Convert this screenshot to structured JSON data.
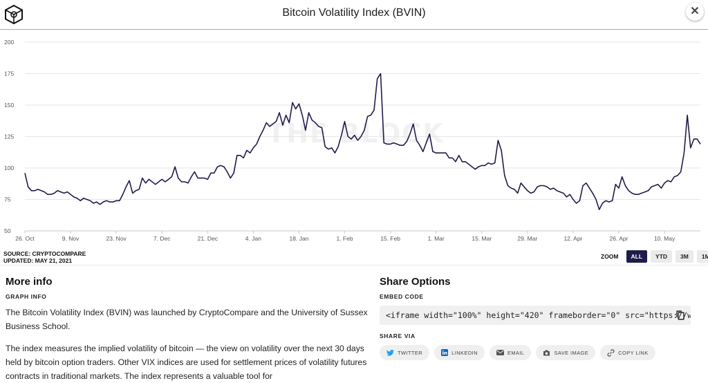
{
  "header": {
    "title": "Bitcoin Volatility Index (BVIN)"
  },
  "source": {
    "line1": "SOURCE: CRYPTOCOMPARE",
    "line2": "UPDATED: MAY 21, 2021"
  },
  "zoom": {
    "label": "ZOOM",
    "buttons": [
      "ALL",
      "YTD",
      "3M",
      "1M"
    ],
    "active": "ALL"
  },
  "more_info": {
    "title": "More info",
    "subtitle": "GRAPH INFO",
    "p1": "The Bitcoin Volatility Index (BVIN) was launched by CryptoCompare and the University of Sussex Business School.",
    "p2": "The index measures the implied volatility of bitcoin — the view on volatility over the next 30 days held by bitcoin option traders. Other VIX indices are used for settlement prices of volatility futures contracts in traditional markets. The index represents a valuable tool for"
  },
  "share": {
    "title": "Share Options",
    "embed_label": "EMBED CODE",
    "embed_code": "<iframe width=\"100%\" height=\"420\" frameborder=\"0\" src=\"https://www.theblockcrypto.com/data/embed",
    "share_via_label": "SHARE VIA",
    "buttons": {
      "twitter": "TWITTER",
      "linkedin": "LINKEDIN",
      "email": "EMAIL",
      "save": "SAVE IMAGE",
      "copy": "COPY LINK"
    }
  },
  "colors": {
    "line": "#1f1b4b",
    "accent": "#c98ee0",
    "active_zoom": "#1f1b4b"
  },
  "chart_data": {
    "type": "line",
    "title": "Bitcoin Volatility Index (BVIN)",
    "xlabel": "",
    "ylabel": "",
    "watermark": "THE BLOCK",
    "ylim": [
      50,
      200
    ],
    "yticks": [
      50,
      75,
      100,
      125,
      150,
      175,
      200
    ],
    "xlim": [
      "2020-10-26",
      "2021-05-21"
    ],
    "xticks": [
      {
        "date": "2020-10-26",
        "label": "26. Oct"
      },
      {
        "date": "2020-11-09",
        "label": "9. Nov"
      },
      {
        "date": "2020-11-23",
        "label": "23. Nov"
      },
      {
        "date": "2020-12-07",
        "label": "7. Dec"
      },
      {
        "date": "2020-12-21",
        "label": "21. Dec"
      },
      {
        "date": "2021-01-04",
        "label": "4. Jan"
      },
      {
        "date": "2021-01-18",
        "label": "18. Jan"
      },
      {
        "date": "2021-02-01",
        "label": "1. Feb"
      },
      {
        "date": "2021-02-15",
        "label": "15. Feb"
      },
      {
        "date": "2021-03-01",
        "label": "1. Mar"
      },
      {
        "date": "2021-03-15",
        "label": "15. Mar"
      },
      {
        "date": "2021-03-29",
        "label": "29. Mar"
      },
      {
        "date": "2021-04-12",
        "label": "12. Apr"
      },
      {
        "date": "2021-04-26",
        "label": "26. Apr"
      },
      {
        "date": "2021-05-10",
        "label": "10. May"
      }
    ],
    "grid": true,
    "series": [
      {
        "values": [
          [
            "2020-10-26",
            96
          ],
          [
            "2020-10-27",
            85
          ],
          [
            "2020-10-28",
            82
          ],
          [
            "2020-10-29",
            82
          ],
          [
            "2020-10-30",
            83
          ],
          [
            "2020-10-31",
            82
          ],
          [
            "2020-11-01",
            81
          ],
          [
            "2020-11-02",
            79
          ],
          [
            "2020-11-03",
            79
          ],
          [
            "2020-11-04",
            80
          ],
          [
            "2020-11-05",
            82
          ],
          [
            "2020-11-06",
            81
          ],
          [
            "2020-11-07",
            80
          ],
          [
            "2020-11-08",
            81
          ],
          [
            "2020-11-09",
            79
          ],
          [
            "2020-11-10",
            77
          ],
          [
            "2020-11-11",
            76
          ],
          [
            "2020-11-12",
            74
          ],
          [
            "2020-11-13",
            76
          ],
          [
            "2020-11-14",
            75
          ],
          [
            "2020-11-15",
            74
          ],
          [
            "2020-11-16",
            72
          ],
          [
            "2020-11-17",
            73
          ],
          [
            "2020-11-18",
            71
          ],
          [
            "2020-11-19",
            73
          ],
          [
            "2020-11-20",
            74
          ],
          [
            "2020-11-21",
            73
          ],
          [
            "2020-11-22",
            73
          ],
          [
            "2020-11-23",
            74
          ],
          [
            "2020-11-24",
            74
          ],
          [
            "2020-11-25",
            79
          ],
          [
            "2020-11-26",
            85
          ],
          [
            "2020-11-27",
            90
          ],
          [
            "2020-11-28",
            80
          ],
          [
            "2020-11-29",
            82
          ],
          [
            "2020-11-30",
            83
          ],
          [
            "2020-12-01",
            92
          ],
          [
            "2020-12-02",
            88
          ],
          [
            "2020-12-03",
            91
          ],
          [
            "2020-12-04",
            89
          ],
          [
            "2020-12-05",
            87
          ],
          [
            "2020-12-06",
            89
          ],
          [
            "2020-12-07",
            91
          ],
          [
            "2020-12-08",
            89
          ],
          [
            "2020-12-09",
            91
          ],
          [
            "2020-12-10",
            93
          ],
          [
            "2020-12-11",
            101
          ],
          [
            "2020-12-12",
            92
          ],
          [
            "2020-12-13",
            89
          ],
          [
            "2020-12-14",
            89
          ],
          [
            "2020-12-15",
            88
          ],
          [
            "2020-12-16",
            93
          ],
          [
            "2020-12-17",
            97
          ],
          [
            "2020-12-18",
            92
          ],
          [
            "2020-12-19",
            92
          ],
          [
            "2020-12-20",
            92
          ],
          [
            "2020-12-21",
            91
          ],
          [
            "2020-12-22",
            96
          ],
          [
            "2020-12-23",
            96
          ],
          [
            "2020-12-24",
            101
          ],
          [
            "2020-12-25",
            102
          ],
          [
            "2020-12-26",
            101
          ],
          [
            "2020-12-27",
            97
          ],
          [
            "2020-12-28",
            92
          ],
          [
            "2020-12-29",
            96
          ],
          [
            "2020-12-30",
            110
          ],
          [
            "2020-12-31",
            110
          ],
          [
            "2021-01-01",
            108
          ],
          [
            "2021-01-02",
            114
          ],
          [
            "2021-01-03",
            112
          ],
          [
            "2021-01-04",
            116
          ],
          [
            "2021-01-05",
            119
          ],
          [
            "2021-01-06",
            125
          ],
          [
            "2021-01-07",
            130
          ],
          [
            "2021-01-08",
            136
          ],
          [
            "2021-01-09",
            133
          ],
          [
            "2021-01-10",
            135
          ],
          [
            "2021-01-11",
            137
          ],
          [
            "2021-01-12",
            144
          ],
          [
            "2021-01-13",
            134
          ],
          [
            "2021-01-14",
            142
          ],
          [
            "2021-01-15",
            136
          ],
          [
            "2021-01-16",
            152
          ],
          [
            "2021-01-17",
            147
          ],
          [
            "2021-01-18",
            151
          ],
          [
            "2021-01-19",
            142
          ],
          [
            "2021-01-20",
            130
          ],
          [
            "2021-01-21",
            144
          ],
          [
            "2021-01-22",
            138
          ],
          [
            "2021-01-23",
            136
          ],
          [
            "2021-01-24",
            133
          ],
          [
            "2021-01-25",
            132
          ],
          [
            "2021-01-26",
            117
          ],
          [
            "2021-01-27",
            115
          ],
          [
            "2021-01-28",
            116
          ],
          [
            "2021-01-29",
            112
          ],
          [
            "2021-01-30",
            117
          ],
          [
            "2021-01-31",
            126
          ],
          [
            "2021-02-01",
            137
          ],
          [
            "2021-02-02",
            125
          ],
          [
            "2021-02-03",
            123
          ],
          [
            "2021-02-04",
            126
          ],
          [
            "2021-02-05",
            122
          ],
          [
            "2021-02-06",
            125
          ],
          [
            "2021-02-07",
            130
          ],
          [
            "2021-02-08",
            141
          ],
          [
            "2021-02-09",
            142
          ],
          [
            "2021-02-10",
            146
          ],
          [
            "2021-02-11",
            171
          ],
          [
            "2021-02-12",
            175
          ],
          [
            "2021-02-13",
            120
          ],
          [
            "2021-02-14",
            119
          ],
          [
            "2021-02-15",
            119
          ],
          [
            "2021-02-16",
            120
          ],
          [
            "2021-02-17",
            119
          ],
          [
            "2021-02-18",
            118
          ],
          [
            "2021-02-19",
            118
          ],
          [
            "2021-02-20",
            121
          ],
          [
            "2021-02-21",
            127
          ],
          [
            "2021-02-22",
            135
          ],
          [
            "2021-02-23",
            122
          ],
          [
            "2021-02-24",
            118
          ],
          [
            "2021-02-25",
            113
          ],
          [
            "2021-02-26",
            120
          ],
          [
            "2021-02-27",
            127
          ],
          [
            "2021-02-28",
            113
          ],
          [
            "2021-03-01",
            112
          ],
          [
            "2021-03-02",
            112
          ],
          [
            "2021-03-03",
            112
          ],
          [
            "2021-03-04",
            112
          ],
          [
            "2021-03-05",
            108
          ],
          [
            "2021-03-06",
            108
          ],
          [
            "2021-03-07",
            105
          ],
          [
            "2021-03-08",
            110
          ],
          [
            "2021-03-09",
            105
          ],
          [
            "2021-03-10",
            105
          ],
          [
            "2021-03-11",
            103
          ],
          [
            "2021-03-12",
            101
          ],
          [
            "2021-03-13",
            99
          ],
          [
            "2021-03-14",
            101
          ],
          [
            "2021-03-15",
            102
          ],
          [
            "2021-03-16",
            102
          ],
          [
            "2021-03-17",
            104
          ],
          [
            "2021-03-18",
            103
          ],
          [
            "2021-03-19",
            104
          ],
          [
            "2021-03-20",
            122
          ],
          [
            "2021-03-21",
            114
          ],
          [
            "2021-03-22",
            94
          ],
          [
            "2021-03-23",
            86
          ],
          [
            "2021-03-24",
            84
          ],
          [
            "2021-03-25",
            83
          ],
          [
            "2021-03-26",
            80
          ],
          [
            "2021-03-27",
            88
          ],
          [
            "2021-03-28",
            85
          ],
          [
            "2021-03-29",
            82
          ],
          [
            "2021-03-30",
            80
          ],
          [
            "2021-03-31",
            81
          ],
          [
            "2021-04-01",
            85
          ],
          [
            "2021-04-02",
            86
          ],
          [
            "2021-04-03",
            86
          ],
          [
            "2021-04-04",
            85
          ],
          [
            "2021-04-05",
            83
          ],
          [
            "2021-04-06",
            84
          ],
          [
            "2021-04-07",
            82
          ],
          [
            "2021-04-08",
            81
          ],
          [
            "2021-04-09",
            80
          ],
          [
            "2021-04-10",
            77
          ],
          [
            "2021-04-11",
            79
          ],
          [
            "2021-04-12",
            75
          ],
          [
            "2021-04-13",
            72
          ],
          [
            "2021-04-14",
            74
          ],
          [
            "2021-04-15",
            86
          ],
          [
            "2021-04-16",
            88
          ],
          [
            "2021-04-17",
            84
          ],
          [
            "2021-04-18",
            80
          ],
          [
            "2021-04-19",
            75
          ],
          [
            "2021-04-20",
            67
          ],
          [
            "2021-04-21",
            72
          ],
          [
            "2021-04-22",
            74
          ],
          [
            "2021-04-23",
            73
          ],
          [
            "2021-04-24",
            74
          ],
          [
            "2021-04-25",
            87
          ],
          [
            "2021-04-26",
            84
          ],
          [
            "2021-04-27",
            93
          ],
          [
            "2021-04-28",
            86
          ],
          [
            "2021-04-29",
            82
          ],
          [
            "2021-04-30",
            80
          ],
          [
            "2021-05-01",
            79
          ],
          [
            "2021-05-02",
            79
          ],
          [
            "2021-05-03",
            80
          ],
          [
            "2021-05-04",
            81
          ],
          [
            "2021-05-05",
            82
          ],
          [
            "2021-05-06",
            85
          ],
          [
            "2021-05-07",
            86
          ],
          [
            "2021-05-08",
            87
          ],
          [
            "2021-05-09",
            84
          ],
          [
            "2021-05-10",
            88
          ],
          [
            "2021-05-11",
            90
          ],
          [
            "2021-05-12",
            89
          ],
          [
            "2021-05-13",
            93
          ],
          [
            "2021-05-14",
            94
          ],
          [
            "2021-05-15",
            97
          ],
          [
            "2021-05-16",
            112
          ],
          [
            "2021-05-17",
            142
          ],
          [
            "2021-05-18",
            116
          ],
          [
            "2021-05-19",
            123
          ],
          [
            "2021-05-20",
            123
          ],
          [
            "2021-05-21",
            119
          ]
        ]
      }
    ]
  }
}
